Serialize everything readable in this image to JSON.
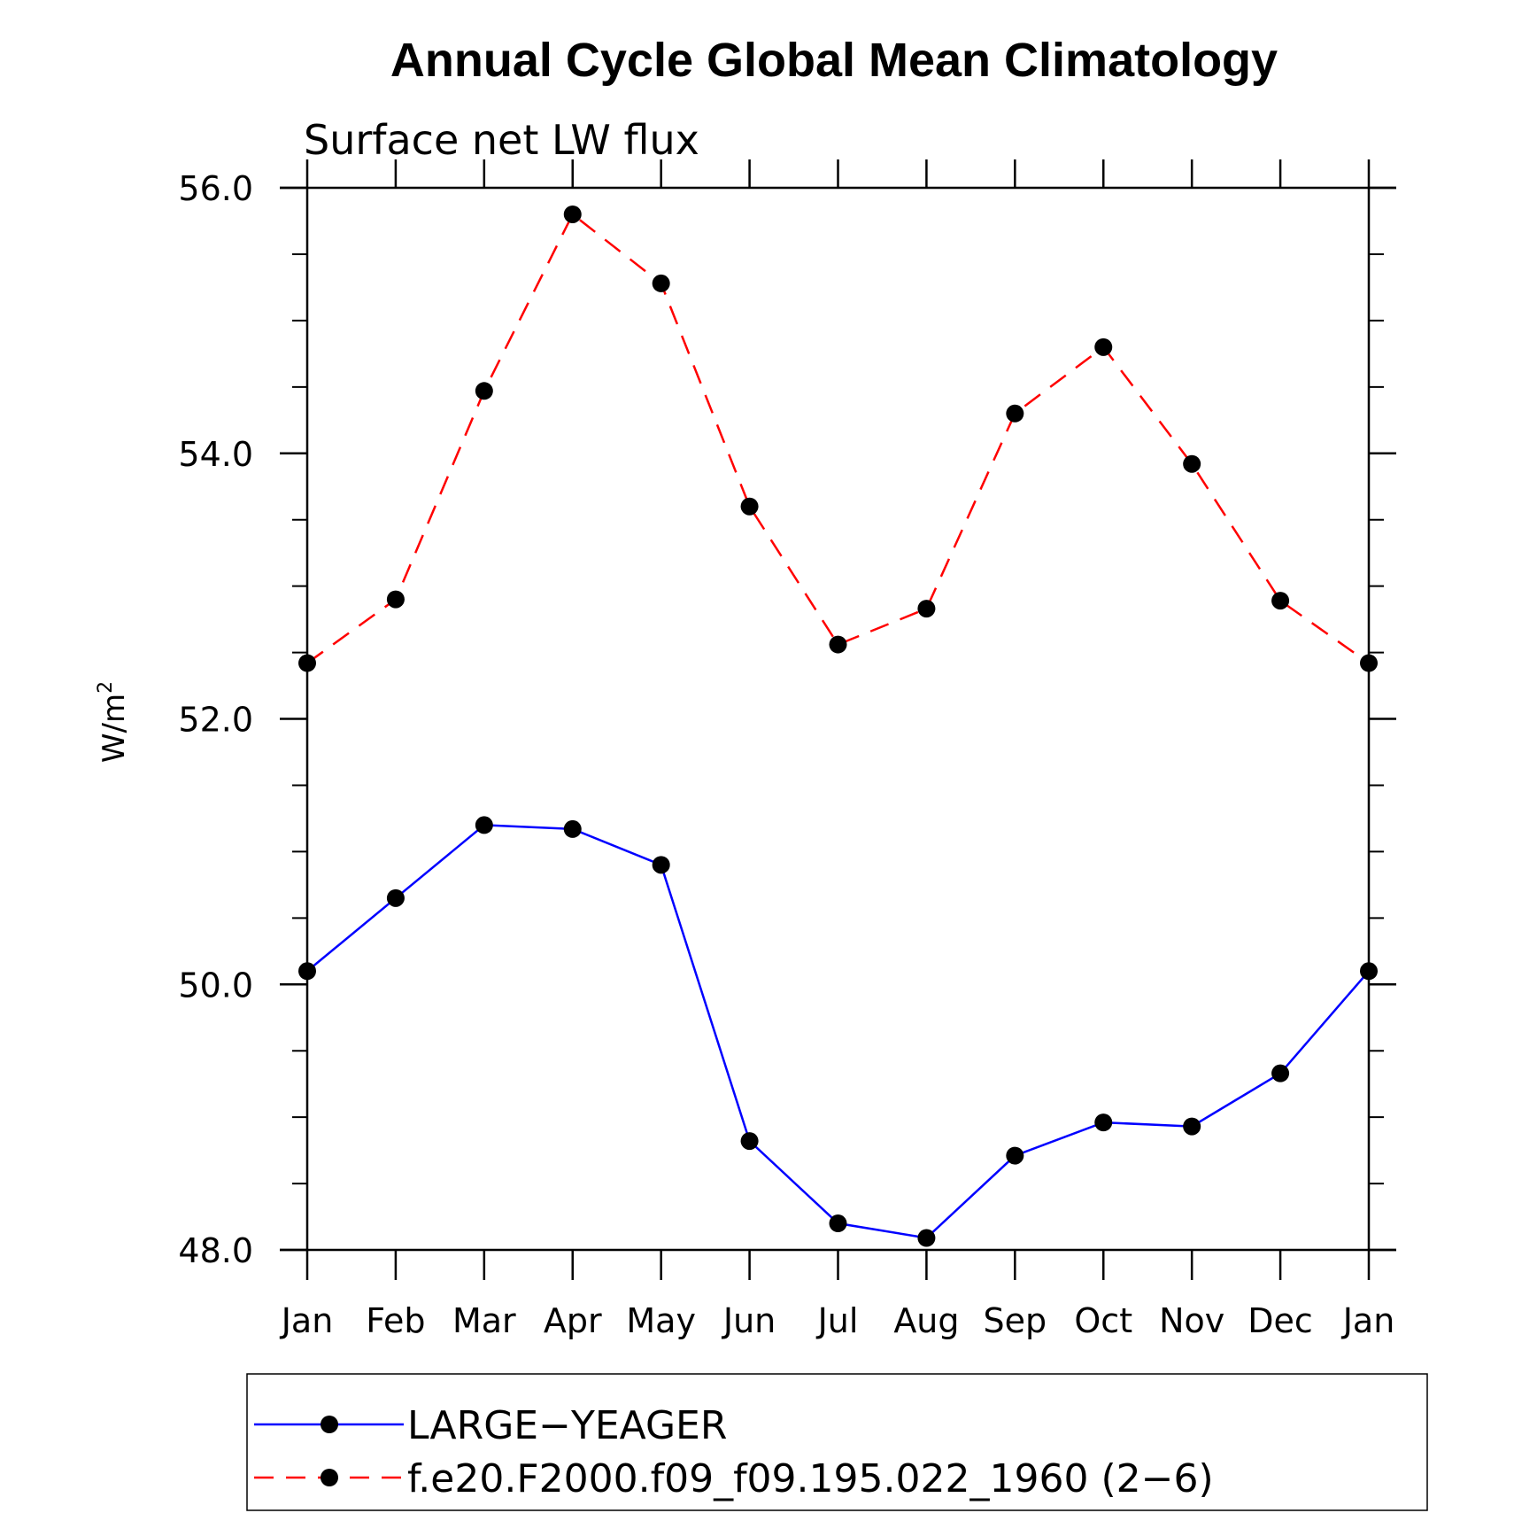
{
  "chart_data": {
    "type": "line",
    "title": "Annual Cycle Global Mean Climatology",
    "subtitle": "Surface net LW flux",
    "xlabel": "",
    "ylabel": "W/m",
    "ylabel_superscript": "2",
    "categories": [
      "Jan",
      "Feb",
      "Mar",
      "Apr",
      "May",
      "Jun",
      "Jul",
      "Aug",
      "Sep",
      "Oct",
      "Nov",
      "Dec",
      "Jan"
    ],
    "ylim": [
      48.0,
      56.0
    ],
    "y_ticks": [
      "48.0",
      "50.0",
      "52.0",
      "54.0",
      "56.0"
    ],
    "y_tick_values": [
      48.0,
      50.0,
      52.0,
      54.0,
      56.0
    ],
    "y_minor_step": 0.5,
    "grid": false,
    "legend_position": "bottom",
    "series": [
      {
        "name": "LARGE−YEAGER",
        "color": "#0000ff",
        "line_style": "solid",
        "marker": "filled-circle",
        "values": [
          50.1,
          50.65,
          51.2,
          51.17,
          50.9,
          48.82,
          48.2,
          48.09,
          48.71,
          48.96,
          48.93,
          49.33,
          50.1
        ]
      },
      {
        "name": "f.e20.F2000.f09_f09.195.022_1960 (2−6)",
        "color": "#ff0000",
        "line_style": "dashed",
        "marker": "filled-circle",
        "values": [
          52.42,
          52.9,
          54.47,
          55.8,
          55.28,
          53.6,
          52.56,
          52.83,
          54.3,
          54.8,
          53.92,
          52.89,
          52.42
        ]
      }
    ]
  }
}
